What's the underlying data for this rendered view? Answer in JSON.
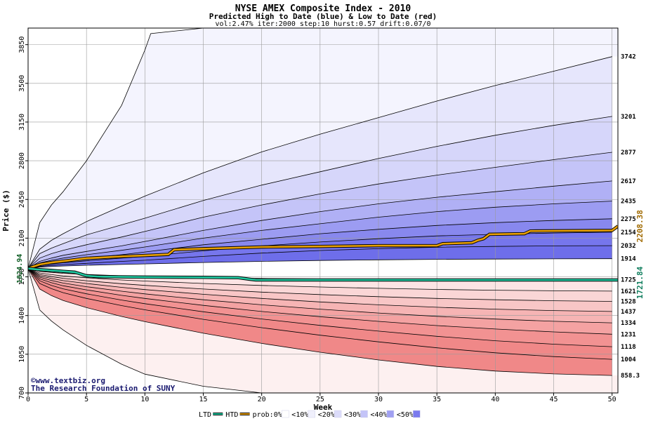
{
  "chart_data": {
    "type": "area",
    "title": "NYSE AMEX Composite Index - 2010",
    "subtitle": "Predicted High to Date (blue) &  Low to Date (red)",
    "params": "vol:2.47% iter:2000 step:10 hurst:0.57 drift:0.07/0",
    "xlabel": "Week",
    "ylabel": "Price ($)",
    "xlim": [
      0,
      50.5
    ],
    "ylim": [
      700,
      4000
    ],
    "x_ticks": [
      0,
      5,
      10,
      15,
      20,
      25,
      30,
      35,
      40,
      45,
      50
    ],
    "y_ticks": [
      700,
      1050,
      1400,
      1750,
      2100,
      2450,
      2800,
      3150,
      3500,
      3850
    ],
    "grid": true,
    "start_value": 1824.94,
    "start_label": "1824.94",
    "x": [
      0,
      1,
      2,
      3,
      5,
      8,
      10,
      15,
      20,
      25,
      30,
      35,
      40,
      45,
      50
    ],
    "bands": [
      {
        "end_label": "3742",
        "values": [
          1825,
          2000,
          2080,
          2140,
          2250,
          2390,
          2480,
          2690,
          2880,
          3040,
          3190,
          3340,
          3480,
          3610,
          3742
        ]
      },
      {
        "end_label": "3201",
        "values": [
          1825,
          1960,
          2010,
          2050,
          2130,
          2220,
          2280,
          2440,
          2580,
          2700,
          2820,
          2930,
          3030,
          3120,
          3201
        ]
      },
      {
        "end_label": "2877",
        "values": [
          1825,
          1920,
          1960,
          1990,
          2040,
          2110,
          2160,
          2290,
          2400,
          2500,
          2590,
          2670,
          2740,
          2810,
          2877
        ]
      },
      {
        "end_label": "2617",
        "values": [
          1825,
          1890,
          1920,
          1945,
          1980,
          2030,
          2070,
          2170,
          2260,
          2340,
          2410,
          2470,
          2520,
          2570,
          2617
        ]
      },
      {
        "end_label": "2435",
        "values": [
          1825,
          1875,
          1900,
          1920,
          1950,
          1990,
          2020,
          2100,
          2170,
          2230,
          2290,
          2340,
          2380,
          2410,
          2435
        ]
      },
      {
        "end_label": "2275",
        "values": [
          1825,
          1862,
          1880,
          1895,
          1920,
          1950,
          1975,
          2040,
          2090,
          2140,
          2180,
          2215,
          2240,
          2260,
          2275
        ]
      },
      {
        "end_label": "2154",
        "values": [
          1825,
          1852,
          1866,
          1877,
          1895,
          1920,
          1935,
          1985,
          2030,
          2065,
          2095,
          2120,
          2135,
          2146,
          2154
        ]
      },
      {
        "end_label": "2032",
        "values": [
          1825,
          1845,
          1854,
          1861,
          1872,
          1890,
          1900,
          1935,
          1965,
          1988,
          2005,
          2018,
          2025,
          2030,
          2032
        ]
      },
      {
        "end_label": "1914",
        "values": [
          1825,
          1838,
          1843,
          1848,
          1855,
          1862,
          1867,
          1880,
          1890,
          1898,
          1904,
          1908,
          1911,
          1913,
          1914
        ]
      },
      {
        "end_label": "1725",
        "values": [
          1825,
          1800,
          1790,
          1782,
          1772,
          1760,
          1754,
          1742,
          1736,
          1732,
          1729,
          1727,
          1726,
          1725,
          1725
        ]
      },
      {
        "end_label": "1621",
        "values": [
          1825,
          1785,
          1770,
          1758,
          1742,
          1722,
          1712,
          1690,
          1672,
          1658,
          1646,
          1636,
          1629,
          1624,
          1621
        ]
      },
      {
        "end_label": "1528",
        "values": [
          1825,
          1772,
          1752,
          1737,
          1715,
          1688,
          1673,
          1640,
          1612,
          1590,
          1571,
          1555,
          1543,
          1534,
          1528
        ]
      },
      {
        "end_label": "1437",
        "values": [
          1825,
          1760,
          1735,
          1716,
          1690,
          1655,
          1635,
          1592,
          1555,
          1523,
          1497,
          1475,
          1458,
          1445,
          1437
        ]
      },
      {
        "end_label": "1334",
        "values": [
          1825,
          1747,
          1717,
          1694,
          1661,
          1620,
          1596,
          1543,
          1497,
          1458,
          1423,
          1393,
          1368,
          1348,
          1334
        ]
      },
      {
        "end_label": "1231",
        "values": [
          1825,
          1732,
          1697,
          1670,
          1632,
          1583,
          1555,
          1492,
          1437,
          1390,
          1347,
          1309,
          1278,
          1252,
          1231
        ]
      },
      {
        "end_label": "1118",
        "values": [
          1825,
          1714,
          1673,
          1642,
          1597,
          1540,
          1507,
          1434,
          1369,
          1311,
          1259,
          1212,
          1172,
          1141,
          1118
        ]
      },
      {
        "end_label": "1004",
        "values": [
          1825,
          1690,
          1643,
          1607,
          1555,
          1490,
          1452,
          1366,
          1290,
          1222,
          1162,
          1108,
          1063,
          1029,
          1004
        ]
      },
      {
        "end_label": "858.3",
        "values": [
          1825,
          1640,
          1580,
          1536,
          1472,
          1392,
          1345,
          1240,
          1148,
          1068,
          998,
          940,
          898,
          872,
          858.3
        ]
      }
    ],
    "envelope_upper": {
      "x": [
        0,
        1,
        2,
        3,
        5,
        8,
        10,
        10.5,
        15,
        20
      ],
      "values": [
        1825,
        2240,
        2400,
        2520,
        2800,
        3300,
        3800,
        3950,
        4000,
        4000
      ]
    },
    "envelope_lower": {
      "x": [
        0,
        1,
        2,
        3,
        5,
        8,
        10,
        15,
        20,
        25
      ],
      "values": [
        1825,
        1450,
        1350,
        1270,
        1130,
        960,
        870,
        760,
        700,
        700
      ]
    },
    "series": [
      {
        "name": "HTD",
        "color": "#e8a000",
        "end_label": "2208.38",
        "x": [
          0,
          0.5,
          1,
          2,
          3,
          5,
          8,
          10,
          12,
          12.5,
          15,
          20,
          25,
          30,
          35,
          35.5,
          38,
          38.5,
          39,
          39.5,
          42.5,
          43,
          50,
          50.5
        ],
        "values": [
          1824.94,
          1845,
          1862,
          1880,
          1892,
          1918,
          1935,
          1943,
          1953,
          1995,
          2005,
          2020,
          2025,
          2032,
          2032,
          2050,
          2058,
          2080,
          2095,
          2135,
          2140,
          2165,
          2170,
          2208.38
        ]
      },
      {
        "name": "LTD",
        "color": "#20c8a0",
        "end_label": "1721.84",
        "x": [
          0,
          1,
          2,
          3,
          4,
          5,
          6,
          10,
          15,
          18,
          19,
          19.5,
          25,
          30,
          35,
          40,
          45,
          50,
          50.5
        ],
        "values": [
          1824.94,
          1815,
          1808,
          1800,
          1792,
          1760,
          1752,
          1748,
          1745,
          1742,
          1728,
          1722,
          1722,
          1722,
          1722,
          1722,
          1722,
          1722,
          1721.84
        ]
      }
    ],
    "annotations": [
      "©www.textbiz.org",
      "The Research Foundation of SUNY"
    ],
    "legend": {
      "placement": "bottom",
      "items": [
        {
          "label": "LTD",
          "kind": "line",
          "color": "#20c8a0"
        },
        {
          "label": "HTD",
          "kind": "line",
          "color": "#e8a000"
        },
        {
          "label": "prob:0%",
          "kind": "swatch",
          "color": "#ffffff"
        },
        {
          "label": "<10%",
          "kind": "swatch",
          "color": "#f0f0fc"
        },
        {
          "label": "<20%",
          "kind": "swatch",
          "color": "#dcdcfa"
        },
        {
          "label": "<30%",
          "kind": "swatch",
          "color": "#c4c4f8"
        },
        {
          "label": "<40%",
          "kind": "swatch",
          "color": "#a0a0f2"
        },
        {
          "label": "<50%",
          "kind": "swatch",
          "color": "#7a7aee"
        }
      ]
    },
    "fills_blue": [
      "#f4f4fe",
      "#e6e6fc",
      "#d6d6fa",
      "#c4c4f8",
      "#b0b0f5",
      "#9c9cf2",
      "#8888ee",
      "#7676ec",
      "#6e6eea"
    ],
    "fills_red": [
      "#fdf0f0",
      "#fce4e4",
      "#fad6d6",
      "#f8c6c6",
      "#f6b4b4",
      "#f4a2a2",
      "#f29292",
      "#f08888"
    ]
  },
  "footer": {
    "site": "©www.textbiz.org",
    "org": "The Research Foundation of SUNY"
  }
}
